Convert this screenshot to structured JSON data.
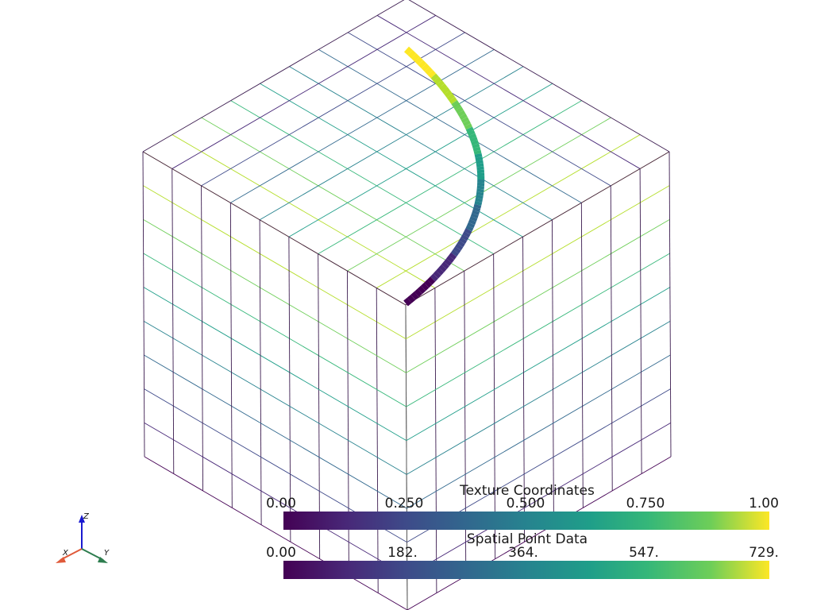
{
  "scene": {
    "grid_divisions": 9,
    "wire_color": "#3b1b4f",
    "curve_colormap": "viridis"
  },
  "colorbars": [
    {
      "title": "Texture Coordinates",
      "ticks": [
        "0.00",
        "0.250",
        "0.500",
        "0.750",
        "1.00"
      ],
      "colormap": "viridis"
    },
    {
      "title": "Spatial Point Data",
      "ticks": [
        "0.00",
        "182.",
        "364.",
        "547.",
        "729."
      ],
      "colormap": "viridis"
    }
  ],
  "axes_widget": {
    "x_label": "X",
    "y_label": "Y",
    "z_label": "Z",
    "x_color": "#e05a3a",
    "y_color": "#2e7d4f",
    "z_color": "#1a1ad0"
  }
}
